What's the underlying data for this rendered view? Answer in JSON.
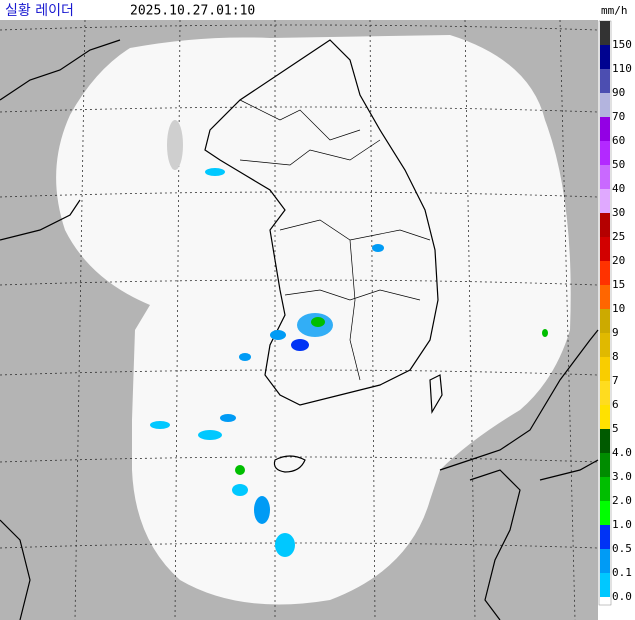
{
  "header": {
    "title": "실황 레이더",
    "timestamp": "2025.10.27.01:10",
    "unit": "mm/h"
  },
  "legend": {
    "items": [
      {
        "label": "150",
        "color": "#333333"
      },
      {
        "label": "110",
        "color": "#000390"
      },
      {
        "label": "90",
        "color": "#4c4eb1"
      },
      {
        "label": "70",
        "color": "#b3b4de"
      },
      {
        "label": "60",
        "color": "#9300e4"
      },
      {
        "label": "50",
        "color": "#b329ff"
      },
      {
        "label": "40",
        "color": "#c969ff"
      },
      {
        "label": "30",
        "color": "#e0a9ff"
      },
      {
        "label": "25",
        "color": "#b40000"
      },
      {
        "label": "20",
        "color": "#d20000"
      },
      {
        "label": "15",
        "color": "#ff3200"
      },
      {
        "label": "10",
        "color": "#ff6600"
      },
      {
        "label": "9",
        "color": "#ccaa00"
      },
      {
        "label": "8",
        "color": "#e0b900"
      },
      {
        "label": "7",
        "color": "#f9cd00"
      },
      {
        "label": "6",
        "color": "#ffdc1f"
      },
      {
        "label": "5",
        "color": "#ffe100"
      },
      {
        "label": "4.0",
        "color": "#005a00"
      },
      {
        "label": "3.0",
        "color": "#008c00"
      },
      {
        "label": "2.0",
        "color": "#00be00"
      },
      {
        "label": "1.0",
        "color": "#00ff00"
      },
      {
        "label": "0.5",
        "color": "#0033f5"
      },
      {
        "label": "0.1",
        "color": "#009bf5"
      },
      {
        "label": "0.0",
        "color": "#00c8ff"
      }
    ]
  }
}
